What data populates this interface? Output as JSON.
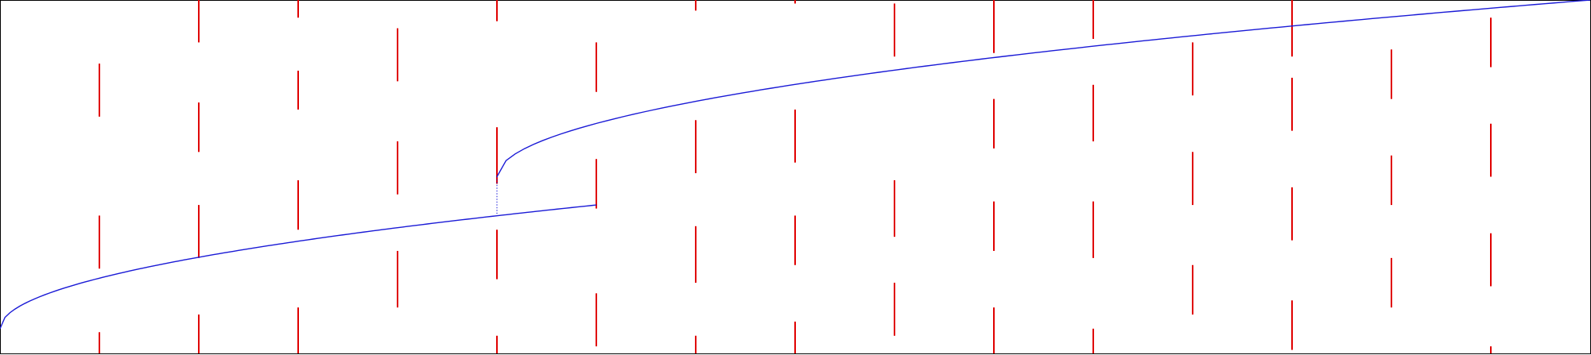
{
  "diagram": {
    "colors": {
      "frame": "#000000",
      "segments": "#e00000",
      "curve": "#1a1ad6",
      "background": "#ffffff"
    },
    "columns": [
      {
        "segments": [
          [
            0.82,
            0.67
          ],
          [
            0.39,
            0.24
          ],
          [
            0.06,
            -0.09
          ]
        ]
      },
      {
        "segments": [
          [
            1.0,
            0.88
          ],
          [
            0.71,
            0.57
          ],
          [
            0.42,
            0.27
          ],
          [
            0.11,
            -0.03
          ],
          [
            -0.2,
            -0.35
          ]
        ]
      },
      {
        "segments": [
          [
            1.0,
            0.95
          ],
          [
            0.8,
            0.69
          ],
          [
            0.49,
            0.35
          ],
          [
            0.13,
            -0.01
          ]
        ]
      },
      {
        "segments": [
          [
            0.92,
            0.77
          ],
          [
            0.6,
            0.45
          ],
          [
            0.29,
            0.13
          ],
          [
            -0.03,
            -0.18
          ]
        ]
      },
      {
        "segments": [
          [
            1.0,
            0.94
          ],
          [
            0.64,
            0.48
          ],
          [
            0.35,
            0.21
          ],
          [
            0.05,
            -0.11
          ]
        ]
      },
      {
        "segments": [
          [
            0.88,
            0.74
          ],
          [
            0.55,
            0.41
          ],
          [
            0.17,
            0.02
          ],
          [
            -0.14,
            -0.3
          ]
        ]
      },
      {
        "segments": [
          [
            1.0,
            0.97
          ],
          [
            0.66,
            0.51
          ],
          [
            0.36,
            0.2
          ],
          [
            0.05,
            -0.1
          ]
        ]
      },
      {
        "segments": [
          [
            1.0,
            0.99
          ],
          [
            0.69,
            0.54
          ],
          [
            0.39,
            0.25
          ],
          [
            0.09,
            -0.06
          ]
        ]
      },
      {
        "segments": [
          [
            0.99,
            0.84
          ],
          [
            0.49,
            0.33
          ],
          [
            0.2,
            0.05
          ],
          [
            -0.1,
            -0.26
          ]
        ]
      },
      {
        "segments": [
          [
            1.0,
            0.85
          ],
          [
            0.72,
            0.58
          ],
          [
            0.43,
            0.29
          ],
          [
            0.13,
            -0.04
          ]
        ]
      },
      {
        "segments": [
          [
            1.0,
            0.89
          ],
          [
            0.76,
            0.6
          ],
          [
            0.43,
            0.27
          ],
          [
            0.07,
            -0.08
          ]
        ]
      },
      {
        "segments": [
          [
            0.88,
            0.73
          ],
          [
            0.57,
            0.42
          ],
          [
            0.25,
            0.11
          ],
          [
            -0.08,
            -0.22
          ]
        ]
      },
      {
        "segments": [
          [
            1.0,
            0.84
          ],
          [
            0.78,
            0.63
          ],
          [
            0.47,
            0.32
          ],
          [
            0.15,
            0.01
          ]
        ]
      },
      {
        "segments": [
          [
            0.86,
            0.72
          ],
          [
            0.56,
            0.42
          ],
          [
            0.27,
            0.13
          ],
          [
            -0.06,
            -0.22
          ]
        ]
      },
      {
        "segments": [
          [
            0.95,
            0.81
          ],
          [
            0.65,
            0.5
          ],
          [
            0.34,
            0.19
          ],
          [
            0.02,
            -0.13
          ]
        ]
      }
    ],
    "curves": [
      {
        "x_start": 0,
        "x_end": 6,
        "y_start": 0.07,
        "y_end": 0.42,
        "style": "solid"
      },
      {
        "x_start": 5,
        "x_end": 16,
        "y_start": 0.5,
        "y_end": 1.0,
        "style": "solid"
      }
    ],
    "connector": {
      "x": 5,
      "y_from": 0.395,
      "y_to": 0.5,
      "style": "dotted"
    }
  }
}
